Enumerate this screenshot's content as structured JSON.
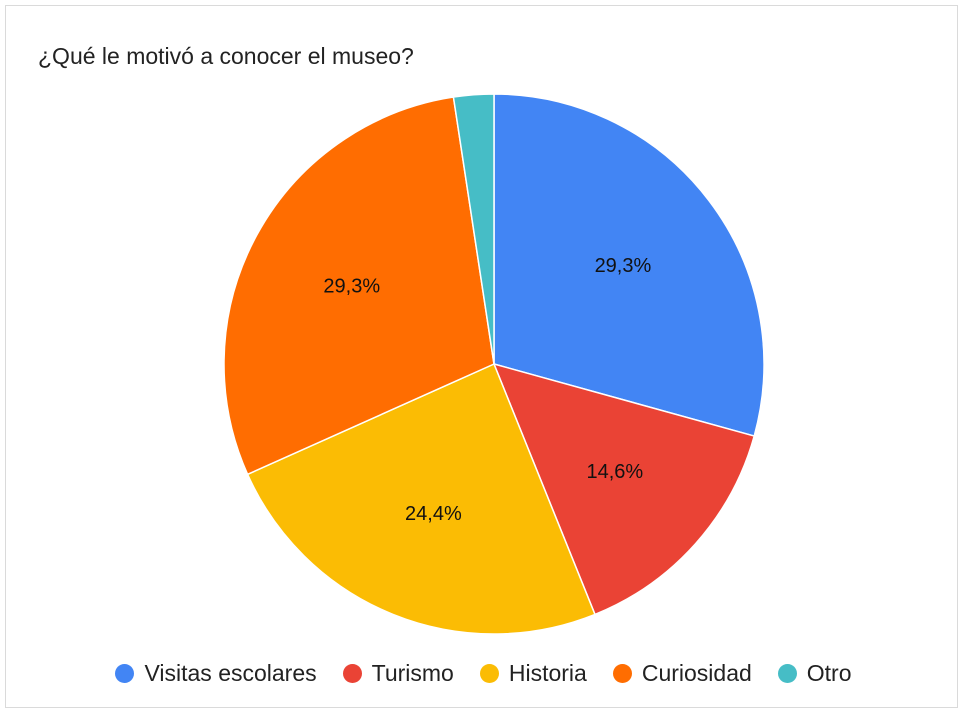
{
  "chart_data": {
    "type": "pie",
    "title": "¿Qué le motivó a conocer el museo?",
    "categories": [
      "Visitas escolares",
      "Turismo",
      "Historia",
      "Curiosidad",
      "Otro"
    ],
    "values": [
      29.3,
      14.6,
      24.4,
      29.3,
      2.4
    ],
    "data_labels": [
      "29,3%",
      "14,6%",
      "24,4%",
      "29,3%",
      ""
    ],
    "colors": [
      "#4285f4",
      "#ea4335",
      "#fbbc04",
      "#ff6d01",
      "#46bdc6"
    ],
    "legend_position": "bottom",
    "start_angle": "top, clockwise"
  }
}
